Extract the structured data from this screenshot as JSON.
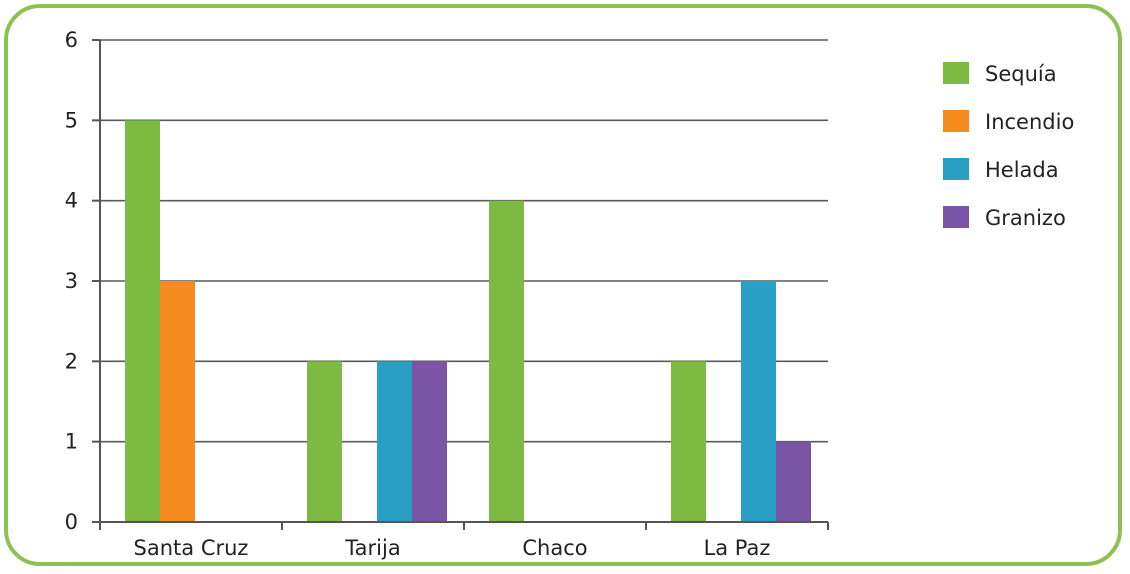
{
  "chart_data": {
    "type": "bar",
    "categories": [
      "Santa Cruz",
      "Tarija",
      "Chaco",
      "La Paz"
    ],
    "series": [
      {
        "name": "Sequía",
        "values": [
          5,
          2,
          4,
          2
        ],
        "color": "#7cba42"
      },
      {
        "name": "Incendio",
        "values": [
          3,
          0,
          0,
          0
        ],
        "color": "#f58a1f"
      },
      {
        "name": "Helada",
        "values": [
          0,
          2,
          0,
          3
        ],
        "color": "#2a9fc6"
      },
      {
        "name": "Granizo",
        "values": [
          0,
          2,
          0,
          1
        ],
        "color": "#7a55a5"
      }
    ],
    "ylim": [
      0,
      6
    ],
    "yticks": [
      "0",
      "1",
      "2",
      "3",
      "4",
      "5",
      "6"
    ],
    "grid": true,
    "legend": "top-right"
  }
}
